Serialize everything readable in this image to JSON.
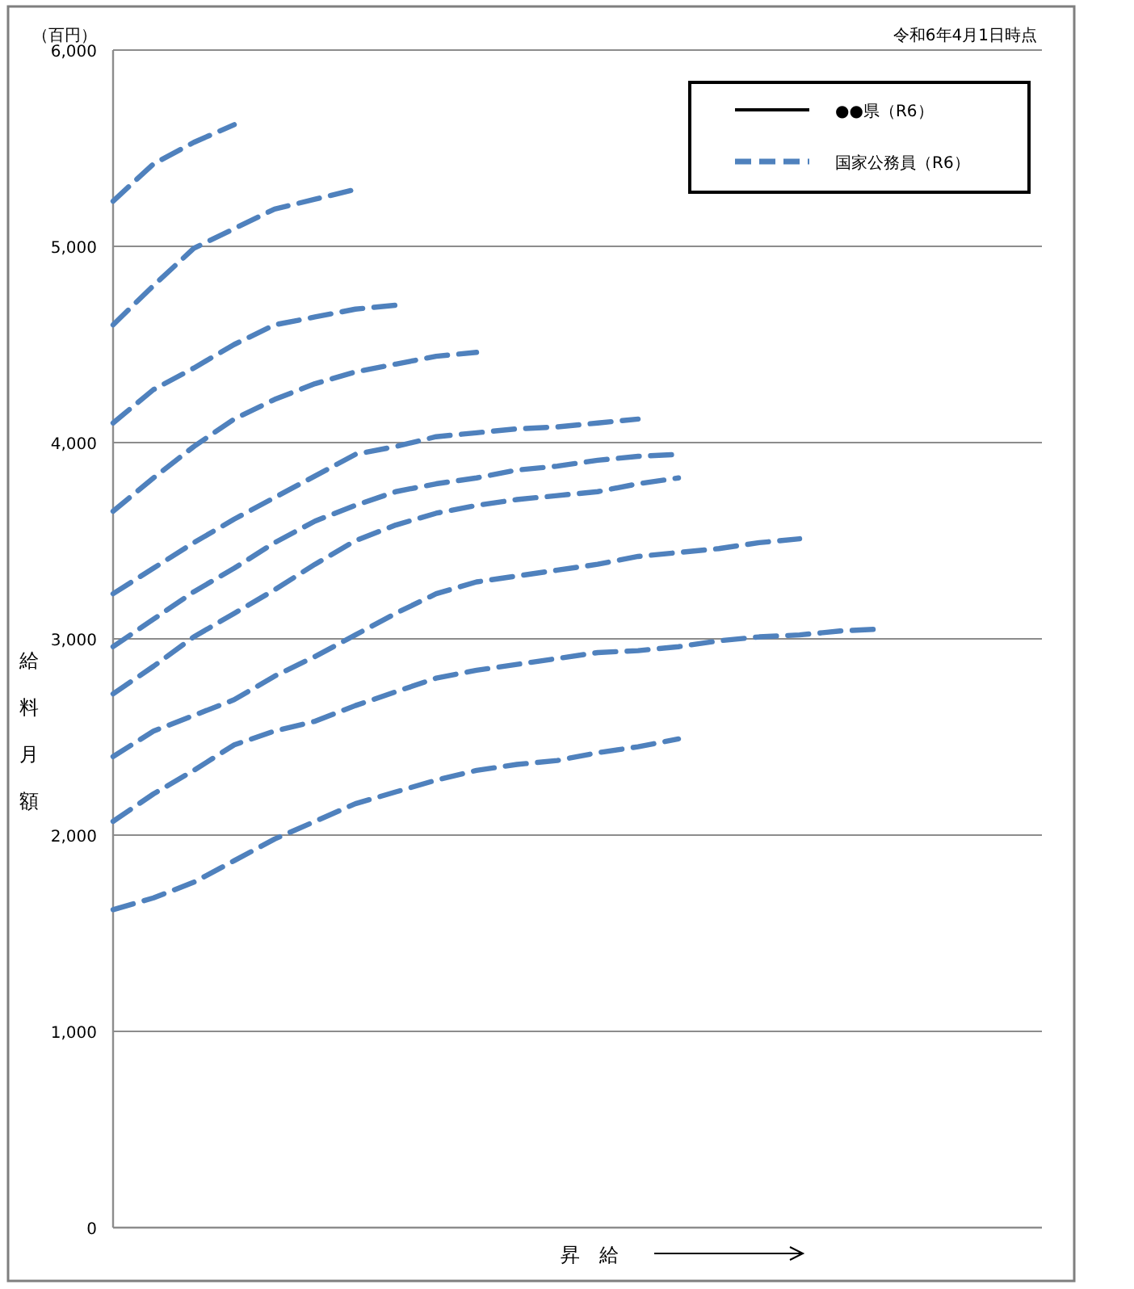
{
  "chart_data": {
    "type": "line",
    "xlabel": "昇　給",
    "ylabel": "給料月額",
    "annotations": [
      "（百円）",
      "令和6年4月1日時点"
    ],
    "categories": [
      null,
      null,
      null,
      null,
      null,
      null,
      null,
      null,
      null,
      null,
      null,
      null,
      null,
      null,
      null,
      null,
      null,
      null,
      null,
      null,
      null,
      null,
      null,
      null
    ],
    "ylim": [
      0,
      6000
    ],
    "yticks": [
      {
        "value": 0,
        "label": "0"
      },
      {
        "value": 1000,
        "label": "1,000"
      },
      {
        "value": 2000,
        "label": "2,000"
      },
      {
        "value": 3000,
        "label": "3,000"
      },
      {
        "value": 4000,
        "label": "4,000"
      },
      {
        "value": 5000,
        "label": "5,000"
      },
      {
        "value": 6000,
        "label": "6,000"
      }
    ],
    "grid": "y",
    "legend": "top right",
    "line_style": "dashed",
    "marker": "none",
    "series": [
      {
        "name": "●●県（R6）",
        "color": "#000000",
        "line_style": "solid",
        "values": [
          null,
          null,
          null,
          null,
          null,
          null,
          null,
          null,
          null,
          null,
          null,
          null,
          null,
          null,
          null,
          null,
          null,
          null,
          null,
          null,
          null,
          null,
          null,
          null
        ]
      },
      {
        "name": "国家公務員（R6）",
        "color": "#4f81bd",
        "values": [
          5230,
          5420,
          5530,
          5620,
          null,
          null,
          null,
          null,
          null,
          null,
          null,
          null,
          null,
          null,
          null,
          null,
          null,
          null,
          null,
          null,
          null,
          null,
          null,
          null
        ]
      },
      {
        "color": "#4f81bd",
        "values": [
          4600,
          4800,
          4990,
          5090,
          5190,
          5240,
          5290,
          null,
          null,
          null,
          null,
          null,
          null,
          null,
          null,
          null,
          null,
          null,
          null,
          null,
          null,
          null,
          null,
          null
        ]
      },
      {
        "color": "#4f81bd",
        "values": [
          4100,
          4270,
          4380,
          4500,
          4600,
          4640,
          4680,
          4700,
          null,
          null,
          null,
          null,
          null,
          null,
          null,
          null,
          null,
          null,
          null,
          null,
          null,
          null,
          null,
          null
        ]
      },
      {
        "color": "#4f81bd",
        "values": [
          3650,
          3820,
          3980,
          4120,
          4220,
          4300,
          4360,
          4400,
          4440,
          4460,
          null,
          null,
          null,
          null,
          null,
          null,
          null,
          null,
          null,
          null,
          null,
          null,
          null,
          null
        ]
      },
      {
        "color": "#4f81bd",
        "values": [
          3230,
          3360,
          3490,
          3610,
          3720,
          3830,
          3940,
          3980,
          4030,
          4050,
          4070,
          4080,
          4100,
          4120,
          null,
          null,
          null,
          null,
          null,
          null,
          null,
          null,
          null,
          null
        ]
      },
      {
        "color": "#4f81bd",
        "values": [
          2960,
          3100,
          3240,
          3360,
          3490,
          3600,
          3680,
          3750,
          3790,
          3820,
          3860,
          3880,
          3910,
          3930,
          3940,
          null,
          null,
          null,
          null,
          null,
          null,
          null,
          null,
          null
        ]
      },
      {
        "color": "#4f81bd",
        "values": [
          2720,
          2860,
          3010,
          3130,
          3250,
          3380,
          3500,
          3580,
          3640,
          3680,
          3710,
          3730,
          3750,
          3790,
          3820,
          null,
          null,
          null,
          null,
          null,
          null,
          null,
          null,
          null
        ]
      },
      {
        "color": "#4f81bd",
        "values": [
          2400,
          2530,
          2610,
          2690,
          2810,
          2910,
          3020,
          3130,
          3230,
          3290,
          3320,
          3350,
          3380,
          3420,
          3440,
          3460,
          3490,
          3510,
          null,
          null,
          null,
          null,
          null,
          null
        ]
      },
      {
        "color": "#4f81bd",
        "values": [
          2070,
          2210,
          2330,
          2460,
          2530,
          2580,
          2660,
          2730,
          2800,
          2840,
          2870,
          2900,
          2930,
          2940,
          2960,
          2990,
          3010,
          3020,
          3040,
          3050,
          null,
          null,
          null,
          null
        ]
      },
      {
        "color": "#4f81bd",
        "values": [
          1620,
          1680,
          1760,
          1870,
          1980,
          2070,
          2160,
          2220,
          2280,
          2330,
          2360,
          2380,
          2420,
          2450,
          2490,
          null,
          null,
          null,
          null,
          null,
          null,
          null,
          null,
          null
        ]
      }
    ]
  }
}
